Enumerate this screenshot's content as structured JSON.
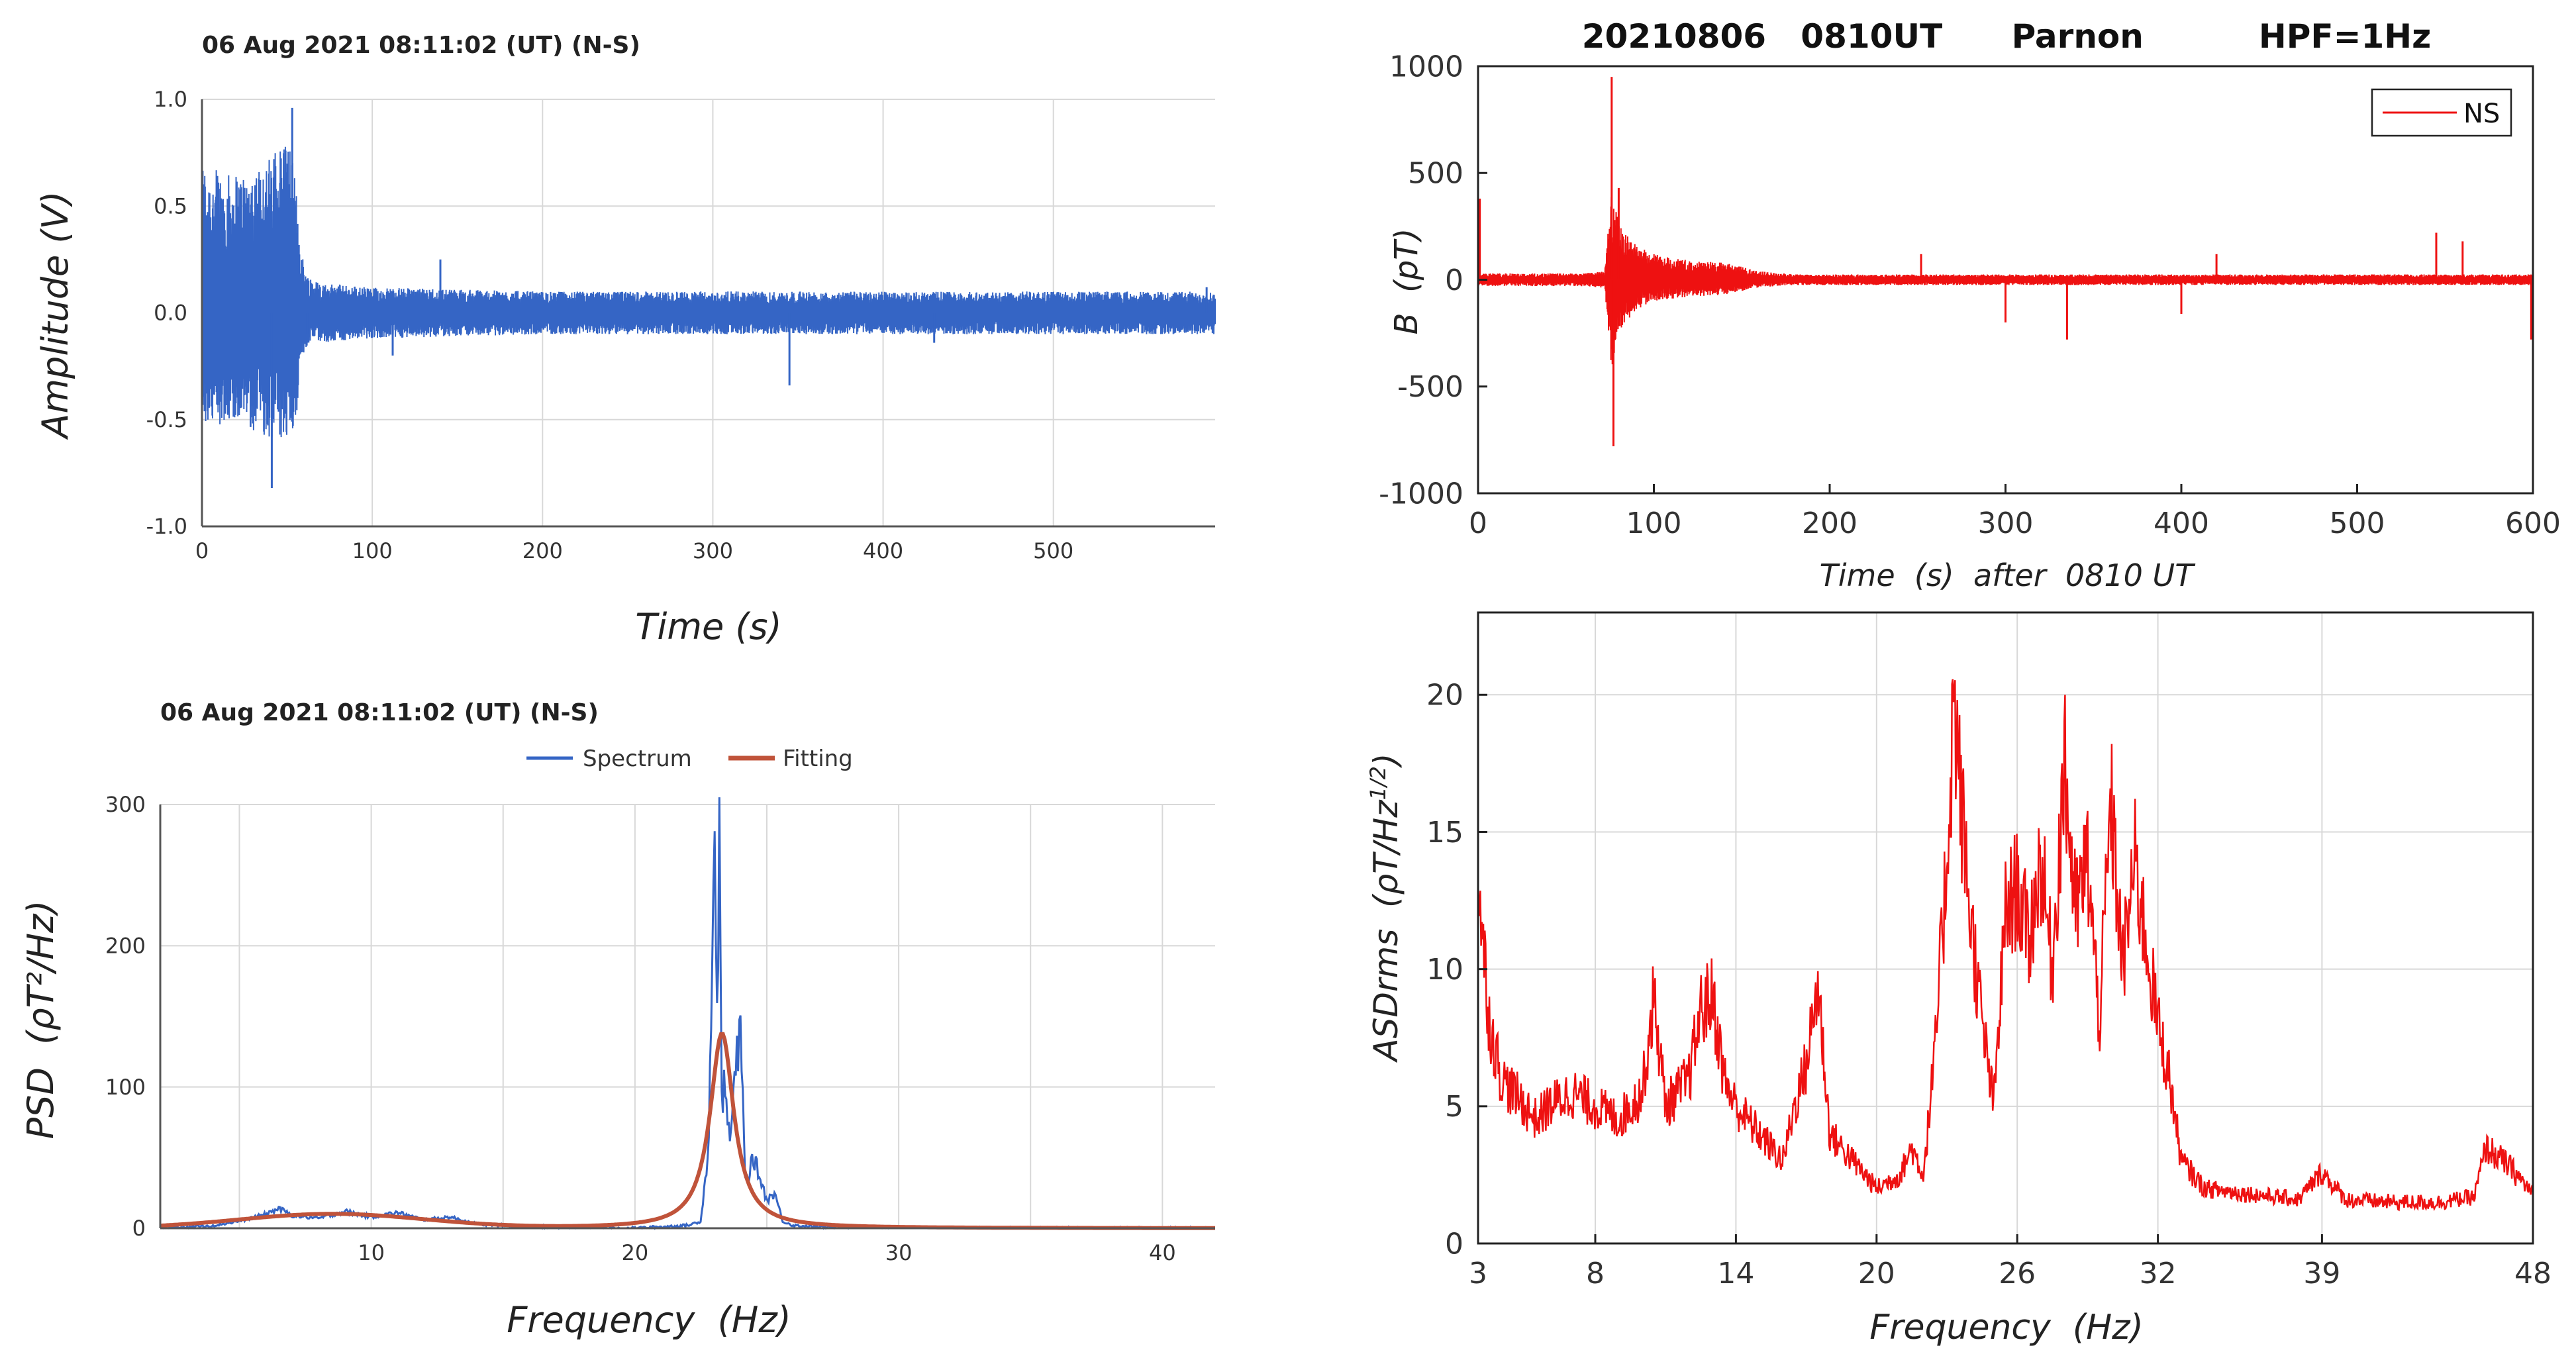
{
  "colors": {
    "blue_series": "#3565c5",
    "red_series": "#ee1111",
    "fit_series": "#c0533a"
  },
  "chart_data": [
    {
      "id": "p1",
      "type": "line",
      "title": "06 Aug 2021  08:11:02 (UT) (N-S)",
      "xlabel": "Time  (s)",
      "ylabel": "Amplitude  (V)",
      "xlim": [
        0,
        595
      ],
      "ylim": [
        -1.0,
        1.0
      ],
      "x_ticks": [
        0,
        100,
        200,
        300,
        400,
        500
      ],
      "x_tick_labels": [
        "0",
        "100",
        "200",
        "300",
        "400",
        "500"
      ],
      "y_ticks": [
        -1.0,
        -0.5,
        0.0,
        0.5,
        1.0
      ],
      "y_tick_labels": [
        "-1.0",
        "-0.5",
        "0.0",
        "0.5",
        "1.0"
      ],
      "series": [
        {
          "name": "N-S",
          "color": "#3565c5",
          "envelope": {
            "t": [
              0,
              5,
              15,
              25,
              35,
              42,
              48,
              52,
              56,
              58,
              62,
              70,
              100,
              200,
              300,
              400,
              500,
              595
            ],
            "upper": [
              0.72,
              0.68,
              0.65,
              0.66,
              0.7,
              0.75,
              0.85,
              0.78,
              0.55,
              0.3,
              0.18,
              0.14,
              0.12,
              0.1,
              0.1,
              0.1,
              0.1,
              0.1
            ],
            "lower": [
              -0.52,
              -0.55,
              -0.5,
              -0.52,
              -0.58,
              -0.6,
              -0.62,
              -0.6,
              -0.45,
              -0.22,
              -0.15,
              -0.14,
              -0.12,
              -0.1,
              -0.1,
              -0.1,
              -0.1,
              -0.1
            ]
          },
          "spikes": [
            {
              "t": 41,
              "v": -0.82
            },
            {
              "t": 53,
              "v": 0.96
            },
            {
              "t": 62,
              "v": -0.1
            },
            {
              "t": 112,
              "v": -0.2
            },
            {
              "t": 140,
              "v": 0.25
            },
            {
              "t": 345,
              "v": -0.34
            },
            {
              "t": 430,
              "v": -0.14
            },
            {
              "t": 590,
              "v": 0.12
            }
          ]
        }
      ]
    },
    {
      "id": "p2",
      "type": "line",
      "title": "20210806   0810UT      Parnon          HPF=1Hz",
      "xlabel": "Time  (s)  after  0810 UT",
      "ylabel": "B  (pT)",
      "xlim": [
        0,
        600
      ],
      "ylim": [
        -1000,
        1000
      ],
      "x_ticks": [
        0,
        100,
        200,
        300,
        400,
        500,
        600
      ],
      "x_tick_labels": [
        "0",
        "100",
        "200",
        "300",
        "400",
        "500",
        "600"
      ],
      "y_ticks": [
        -1000,
        -500,
        0,
        500,
        1000
      ],
      "y_tick_labels": [
        "-1000",
        "-500",
        "0",
        "500",
        "1000"
      ],
      "legend": [
        "NS"
      ],
      "legend_position": "top-right",
      "series": [
        {
          "name": "NS",
          "color": "#ee1111",
          "envelope": {
            "t": [
              0,
              60,
              72,
              76,
              80,
              90,
              100,
              120,
              140,
              160,
              180,
              300,
              600
            ],
            "upper": [
              30,
              30,
              40,
              420,
              260,
              160,
              120,
              90,
              80,
              40,
              25,
              25,
              25
            ],
            "lower": [
              -30,
              -30,
              -40,
              -420,
              -240,
              -140,
              -100,
              -80,
              -70,
              -35,
              -25,
              -25,
              -25
            ]
          },
          "spikes": [
            {
              "t": 1,
              "v": 380
            },
            {
              "t": 76,
              "v": 950
            },
            {
              "t": 77,
              "v": -780
            },
            {
              "t": 80,
              "v": 430
            },
            {
              "t": 252,
              "v": 120
            },
            {
              "t": 300,
              "v": -200
            },
            {
              "t": 335,
              "v": -280
            },
            {
              "t": 400,
              "v": -160
            },
            {
              "t": 420,
              "v": 120
            },
            {
              "t": 545,
              "v": 220
            },
            {
              "t": 560,
              "v": 180
            },
            {
              "t": 599,
              "v": -280
            }
          ]
        }
      ]
    },
    {
      "id": "p3",
      "type": "line",
      "title": "06 Aug 2021  08:11:02 (UT) (N-S)",
      "xlabel": "Frequency  (Hz)",
      "ylabel": "PSD  (ρT²/Hz)",
      "xlim": [
        2,
        42
      ],
      "ylim": [
        0,
        300
      ],
      "x_ticks": [
        10,
        20,
        30,
        40
      ],
      "x_tick_labels": [
        "10",
        "20",
        "30",
        "40"
      ],
      "y_ticks": [
        0,
        100,
        200,
        300
      ],
      "y_tick_labels": [
        "0",
        "100",
        "200",
        "300"
      ],
      "legend": [
        "Spectrum",
        "Fitting"
      ],
      "legend_position": "top-center",
      "series": [
        {
          "name": "Spectrum",
          "color": "#3565c5",
          "x": [
            2,
            4,
            5,
            6,
            6.5,
            7,
            8,
            9,
            10,
            11,
            12,
            13,
            14,
            15,
            18,
            20,
            21,
            22,
            22.5,
            22.8,
            23,
            23.1,
            23.2,
            23.3,
            23.4,
            23.6,
            23.8,
            24,
            24.2,
            24.5,
            25,
            25.3,
            25.6,
            26,
            28,
            30,
            35,
            42
          ],
          "values": [
            0,
            2,
            5,
            10,
            14,
            9,
            7,
            12,
            8,
            11,
            6,
            8,
            3,
            2,
            0,
            0,
            1,
            2,
            5,
            60,
            288,
            130,
            280,
            90,
            100,
            60,
            110,
            137,
            30,
            50,
            20,
            25,
            5,
            2,
            0,
            0,
            0,
            0
          ]
        },
        {
          "name": "Fitting",
          "color": "#c0533a",
          "lorentzian": {
            "center": 23.3,
            "amplitude": 138,
            "gamma": 0.55
          },
          "baseline": {
            "center": 8.5,
            "amplitude": 10,
            "sigma": 3.5
          }
        }
      ]
    },
    {
      "id": "p4",
      "type": "line",
      "title": "",
      "xlabel": "Frequency  (Hz)",
      "ylabel": "ASDrms  (ρT/Hz¹ᐟ²)",
      "ylabel_text": "ASDrms  (ρT/Hz",
      "ylabel_sup": "1/2",
      "ylabel_close": ")",
      "xlim": [
        3,
        48
      ],
      "ylim": [
        0,
        23
      ],
      "x_ticks": [
        3,
        8,
        14,
        20,
        26,
        32,
        39,
        48
      ],
      "x_tick_labels": [
        "3",
        "8",
        "14",
        "20",
        "26",
        "32",
        "39",
        "48"
      ],
      "y_ticks": [
        0,
        5,
        10,
        15,
        20
      ],
      "y_tick_labels": [
        "0",
        "5",
        "10",
        "15",
        "20"
      ],
      "series": [
        {
          "name": "ASDrms",
          "color": "#ee1111",
          "x": [
            3,
            3.2,
            3.5,
            4,
            4.5,
            5,
            5.5,
            6,
            7,
            8,
            9,
            10,
            10.5,
            11,
            12,
            12.5,
            13,
            13.5,
            14,
            15,
            16,
            16.5,
            17,
            17.5,
            18,
            19,
            20,
            21,
            21.5,
            22,
            22.5,
            23,
            23.3,
            23.6,
            24,
            24.5,
            25,
            25.5,
            26,
            26.5,
            27,
            27.5,
            28,
            28.5,
            29,
            29.5,
            30,
            30.5,
            31,
            31.5,
            32,
            32.5,
            33,
            34,
            36,
            38,
            39,
            40,
            42,
            44,
            45.5,
            46,
            47,
            48
          ],
          "values": [
            13.5,
            11,
            8,
            6,
            5.5,
            5,
            4.5,
            5,
            5.5,
            5,
            4.5,
            5.5,
            9,
            5,
            6,
            8.5,
            9,
            6,
            5,
            4,
            3,
            5,
            6.5,
            9.5,
            4,
            3,
            2,
            2.5,
            3.5,
            2.5,
            7,
            14,
            20,
            16,
            12,
            8,
            5,
            12,
            13,
            11,
            14,
            10,
            17.5,
            12,
            14,
            8,
            16,
            10,
            14,
            11,
            8,
            6,
            3,
            2,
            1.8,
            1.6,
            2.6,
            1.6,
            1.5,
            1.5,
            1.7,
            3.5,
            2.8,
            1.8
          ]
        }
      ]
    }
  ]
}
